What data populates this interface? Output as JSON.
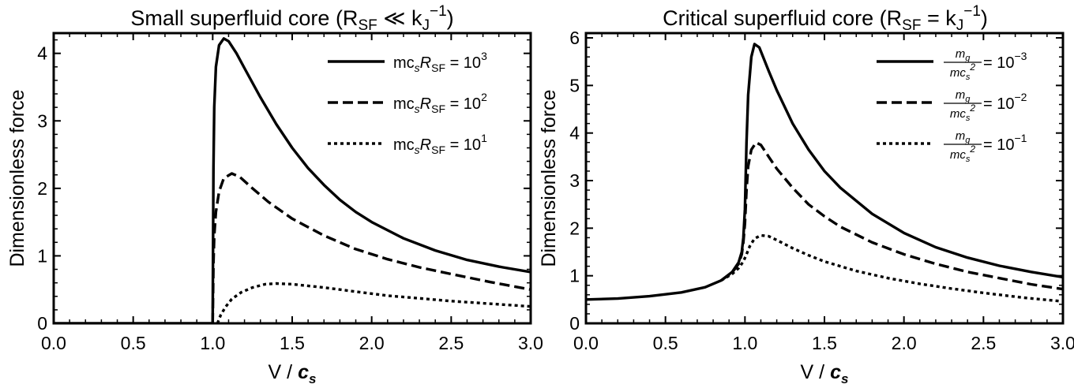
{
  "chart_data": [
    {
      "type": "line",
      "title": {
        "main": "Small superfluid core (R",
        "sub1": "SF",
        "mid": " ≪ k",
        "sub2": "J",
        "sup": "−1",
        "close": ")"
      },
      "xlabel": {
        "main": "V / ",
        "var": "c",
        "sub": "s"
      },
      "ylabel": "Dimensionless force",
      "xlim": [
        0,
        3
      ],
      "ylim": [
        0,
        4.3
      ],
      "xticks": [
        "0.0",
        "0.5",
        "1.0",
        "1.5",
        "2.0",
        "2.5",
        "3.0"
      ],
      "yticks": [
        "0",
        "1",
        "2",
        "3",
        "4"
      ],
      "legend_position": "top-right",
      "grid": false,
      "series": [
        {
          "name": {
            "pre": "mc",
            "sub": "s",
            "var": "R",
            "sub2": "SF",
            "mid": " = 10",
            "sup": "3"
          },
          "style": "solid",
          "points": [
            [
              0,
              0
            ],
            [
              0.99,
              0
            ],
            [
              1.0,
              0
            ],
            [
              1.005,
              2.3
            ],
            [
              1.01,
              3.2
            ],
            [
              1.02,
              3.8
            ],
            [
              1.04,
              4.12
            ],
            [
              1.07,
              4.22
            ],
            [
              1.1,
              4.18
            ],
            [
              1.15,
              4.0
            ],
            [
              1.2,
              3.78
            ],
            [
              1.3,
              3.35
            ],
            [
              1.4,
              2.95
            ],
            [
              1.5,
              2.6
            ],
            [
              1.6,
              2.3
            ],
            [
              1.7,
              2.05
            ],
            [
              1.8,
              1.83
            ],
            [
              1.9,
              1.65
            ],
            [
              2.0,
              1.5
            ],
            [
              2.2,
              1.26
            ],
            [
              2.4,
              1.08
            ],
            [
              2.6,
              0.94
            ],
            [
              2.8,
              0.84
            ],
            [
              3.0,
              0.76
            ]
          ]
        },
        {
          "name": {
            "pre": "mc",
            "sub": "s",
            "var": "R",
            "sub2": "SF",
            "mid": " = 10",
            "sup": "2"
          },
          "style": "dashed",
          "points": [
            [
              1.0,
              0
            ],
            [
              1.005,
              0.9
            ],
            [
              1.01,
              1.3
            ],
            [
              1.02,
              1.65
            ],
            [
              1.04,
              1.95
            ],
            [
              1.07,
              2.15
            ],
            [
              1.12,
              2.22
            ],
            [
              1.17,
              2.17
            ],
            [
              1.25,
              2.0
            ],
            [
              1.35,
              1.8
            ],
            [
              1.5,
              1.55
            ],
            [
              1.7,
              1.3
            ],
            [
              1.9,
              1.1
            ],
            [
              2.1,
              0.95
            ],
            [
              2.3,
              0.83
            ],
            [
              2.5,
              0.73
            ],
            [
              2.75,
              0.61
            ],
            [
              3.0,
              0.5
            ]
          ]
        },
        {
          "name": {
            "pre": "mc",
            "sub": "s",
            "var": "R",
            "sub2": "SF",
            "mid": " = 10",
            "sup": "1"
          },
          "style": "dotted",
          "points": [
            [
              1.03,
              0
            ],
            [
              1.05,
              0.12
            ],
            [
              1.08,
              0.24
            ],
            [
              1.12,
              0.36
            ],
            [
              1.18,
              0.46
            ],
            [
              1.25,
              0.53
            ],
            [
              1.33,
              0.58
            ],
            [
              1.4,
              0.59
            ],
            [
              1.5,
              0.58
            ],
            [
              1.7,
              0.53
            ],
            [
              1.9,
              0.47
            ],
            [
              2.1,
              0.41
            ],
            [
              2.3,
              0.37
            ],
            [
              2.5,
              0.33
            ],
            [
              2.75,
              0.29
            ],
            [
              3.0,
              0.25
            ]
          ]
        }
      ]
    },
    {
      "type": "line",
      "title": {
        "main": "Critical superfluid core (R",
        "sub1": "SF",
        "mid": " = k",
        "sub2": "J",
        "sup": "−1",
        "close": ")"
      },
      "xlabel": {
        "main": "V / ",
        "var": "c",
        "sub": "s"
      },
      "ylabel": "Dimensionless force",
      "xlim": [
        0,
        3
      ],
      "ylim": [
        0,
        6.1
      ],
      "xticks": [
        "0.0",
        "0.5",
        "1.0",
        "1.5",
        "2.0",
        "2.5",
        "3.0"
      ],
      "yticks": [
        "0",
        "1",
        "2",
        "3",
        "4",
        "5",
        "6"
      ],
      "legend_position": "top-right",
      "grid": false,
      "series": [
        {
          "name": {
            "num": "m",
            "num_sub": "g",
            "den": "mc",
            "den_sub": "s",
            "den_sup": "2",
            "mid": " = 10",
            "sup": "−3"
          },
          "style": "solid",
          "points": [
            [
              0,
              0.5
            ],
            [
              0.2,
              0.52
            ],
            [
              0.4,
              0.57
            ],
            [
              0.6,
              0.65
            ],
            [
              0.75,
              0.76
            ],
            [
              0.85,
              0.9
            ],
            [
              0.92,
              1.08
            ],
            [
              0.96,
              1.28
            ],
            [
              0.98,
              1.5
            ],
            [
              0.99,
              1.8
            ],
            [
              1.0,
              2.4
            ],
            [
              1.01,
              3.8
            ],
            [
              1.02,
              4.8
            ],
            [
              1.04,
              5.6
            ],
            [
              1.06,
              5.87
            ],
            [
              1.09,
              5.8
            ],
            [
              1.15,
              5.3
            ],
            [
              1.2,
              4.9
            ],
            [
              1.3,
              4.2
            ],
            [
              1.4,
              3.65
            ],
            [
              1.5,
              3.2
            ],
            [
              1.6,
              2.85
            ],
            [
              1.8,
              2.3
            ],
            [
              2.0,
              1.9
            ],
            [
              2.2,
              1.6
            ],
            [
              2.4,
              1.38
            ],
            [
              2.6,
              1.21
            ],
            [
              2.8,
              1.08
            ],
            [
              3.0,
              0.97
            ]
          ]
        },
        {
          "name": {
            "num": "m",
            "num_sub": "g",
            "den": "mc",
            "den_sub": "s",
            "den_sup": "2",
            "mid": " = 10",
            "sup": "−2"
          },
          "style": "dashed",
          "points": [
            [
              0.85,
              0.9
            ],
            [
              0.92,
              1.07
            ],
            [
              0.96,
              1.25
            ],
            [
              0.98,
              1.45
            ],
            [
              0.99,
              1.7
            ],
            [
              1.0,
              2.1
            ],
            [
              1.01,
              2.8
            ],
            [
              1.02,
              3.3
            ],
            [
              1.04,
              3.65
            ],
            [
              1.07,
              3.8
            ],
            [
              1.1,
              3.75
            ],
            [
              1.15,
              3.5
            ],
            [
              1.2,
              3.25
            ],
            [
              1.3,
              2.85
            ],
            [
              1.4,
              2.5
            ],
            [
              1.5,
              2.25
            ],
            [
              1.6,
              2.03
            ],
            [
              1.8,
              1.7
            ],
            [
              2.0,
              1.45
            ],
            [
              2.2,
              1.25
            ],
            [
              2.4,
              1.08
            ],
            [
              2.6,
              0.95
            ],
            [
              2.8,
              0.82
            ],
            [
              3.0,
              0.72
            ]
          ]
        },
        {
          "name": {
            "num": "m",
            "num_sub": "g",
            "den": "mc",
            "den_sub": "s",
            "den_sup": "2",
            "mid": " = 10",
            "sup": "−1"
          },
          "style": "dotted",
          "points": [
            [
              0.85,
              0.9
            ],
            [
              0.92,
              1.04
            ],
            [
              0.96,
              1.16
            ],
            [
              0.99,
              1.3
            ],
            [
              1.01,
              1.45
            ],
            [
              1.03,
              1.62
            ],
            [
              1.06,
              1.78
            ],
            [
              1.1,
              1.85
            ],
            [
              1.15,
              1.83
            ],
            [
              1.2,
              1.75
            ],
            [
              1.3,
              1.58
            ],
            [
              1.4,
              1.43
            ],
            [
              1.5,
              1.3
            ],
            [
              1.7,
              1.1
            ],
            [
              1.9,
              0.95
            ],
            [
              2.1,
              0.83
            ],
            [
              2.3,
              0.73
            ],
            [
              2.5,
              0.64
            ],
            [
              2.75,
              0.54
            ],
            [
              3.0,
              0.46
            ]
          ]
        }
      ]
    }
  ]
}
